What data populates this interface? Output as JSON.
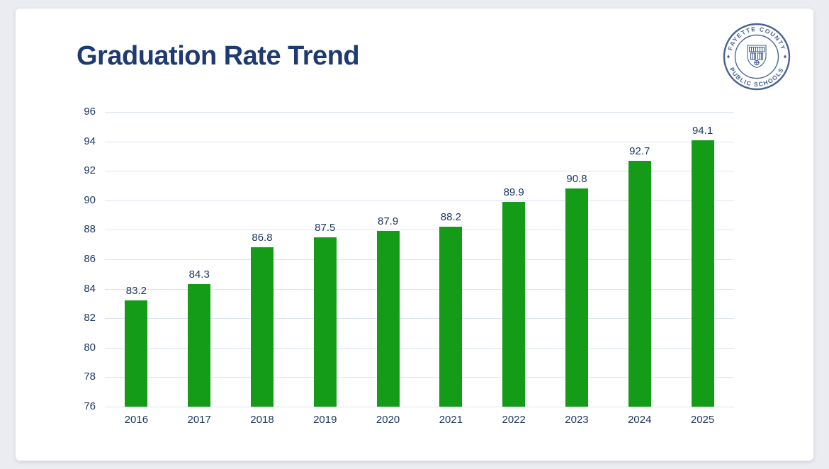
{
  "window": {
    "background": "#ebecf1",
    "card_background": "#ffffff"
  },
  "header": {
    "title": "Graduation Rate Trend",
    "title_color": "#1f3a70"
  },
  "logo": {
    "top_text": "FAYETTE COUNTY",
    "bottom_text": "PUBLIC SCHOOLS",
    "color": "#4a6392"
  },
  "chart_data": {
    "type": "bar",
    "title": "Graduation Rate Trend",
    "categories": [
      "2016",
      "2017",
      "2018",
      "2019",
      "2020",
      "2021",
      "2022",
      "2023",
      "2024",
      "2025"
    ],
    "values": [
      83.2,
      84.3,
      86.8,
      87.5,
      87.9,
      88.2,
      89.9,
      90.8,
      92.7,
      94.1
    ],
    "value_labels": [
      "83.2",
      "84.3",
      "86.8",
      "87.5",
      "87.9",
      "88.2",
      "89.9",
      "90.8",
      "92.7",
      "94.1"
    ],
    "xlabel": "",
    "ylabel": "",
    "ylim": [
      76,
      96
    ],
    "yticks": [
      96,
      94,
      92,
      90,
      88,
      86,
      84,
      82,
      80,
      78,
      76
    ],
    "grid": true,
    "legend_position": "none",
    "bar_color": "#149c19",
    "axis_label_color": "#1f3864",
    "gridline_color": "#dce3f0"
  }
}
